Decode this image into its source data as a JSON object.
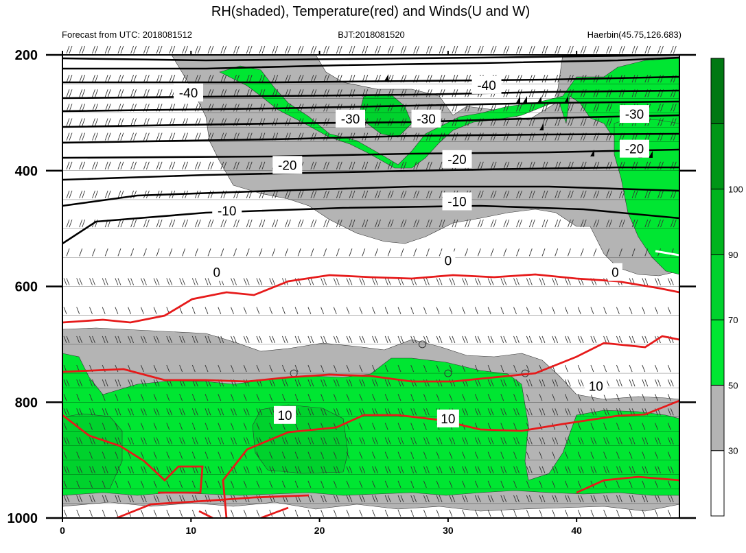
{
  "chart_data": {
    "type": "heatmap",
    "title": "RH(shaded), Temperature(red) and Winds(U and W)",
    "subtitle_left": "Forecast from UTC: 2018081512",
    "subtitle_center": "BJT:2018081520",
    "subtitle_right": "Haerbin(45.75,126.683)",
    "x_ticks": [
      "0",
      "10",
      "20",
      "30",
      "40"
    ],
    "y_ticks": [
      "200",
      "400",
      "600",
      "800",
      "1000"
    ],
    "xlim": [
      0,
      48
    ],
    "ylim": [
      1000,
      200
    ],
    "colorbar": {
      "levels": [
        "30",
        "50",
        "70",
        "90",
        "100"
      ],
      "colors": [
        "#ffffff",
        "#b4b4b4",
        "#00e632",
        "#00d22d",
        "#00b41e",
        "#009617",
        "#007812"
      ]
    },
    "shading_colors": {
      "gray": "#b4b4b4",
      "light_green": "#00e632",
      "green": "#00d22d"
    },
    "temperature_color": "#e61a1a",
    "isotherm_color": "#000000",
    "isotherm_labels": [
      {
        "text": "-40",
        "x": 9.8,
        "p": 265
      },
      {
        "text": "-40",
        "x": 33.0,
        "p": 252
      },
      {
        "text": "-30",
        "x": 22.4,
        "p": 310
      },
      {
        "text": "-30",
        "x": 28.3,
        "p": 310
      },
      {
        "text": "-30",
        "x": 44.5,
        "p": 302
      },
      {
        "text": "-20",
        "x": 17.5,
        "p": 390
      },
      {
        "text": "-20",
        "x": 30.7,
        "p": 380
      },
      {
        "text": "-20",
        "x": 44.5,
        "p": 362
      },
      {
        "text": "-10",
        "x": 12.8,
        "p": 469
      },
      {
        "text": "-10",
        "x": 30.7,
        "p": 453
      },
      {
        "text": "0",
        "x": 12.0,
        "p": 575
      },
      {
        "text": "0",
        "x": 30.0,
        "p": 555
      },
      {
        "text": "0",
        "x": 43.0,
        "p": 575
      }
    ],
    "temperature_labels": [
      {
        "text": "10",
        "x": 17.3,
        "p": 822
      },
      {
        "text": "10",
        "x": 30.0,
        "p": 828
      },
      {
        "text": "10",
        "x": 41.5,
        "p": 772
      }
    ]
  }
}
